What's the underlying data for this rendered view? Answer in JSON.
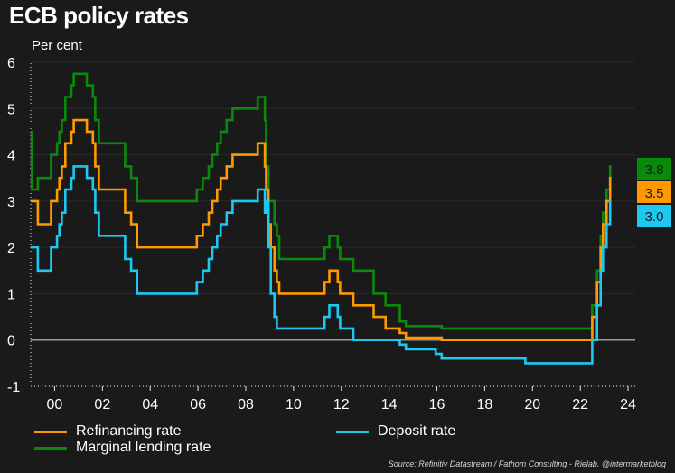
{
  "colors": {
    "background": "#1a1a1a",
    "refinancing": "#ff9900",
    "deposit": "#1ec8f0",
    "marginal": "#0a8a0a",
    "zero_line": "#9a9a9a",
    "grid": "#2b2b2b"
  },
  "source": "Source: Refinitiv Datastream / Fathom Consulting - Rielab. @intermarketblog",
  "chart_data": {
    "type": "line",
    "step": true,
    "title": "ECB policy rates",
    "subtitle": "Per cent",
    "xlabel": "",
    "ylabel": "",
    "xlim": [
      1999.0,
      2024.3
    ],
    "ylim": [
      -1,
      6
    ],
    "x_ticks": [
      2000,
      2002,
      2004,
      2006,
      2008,
      2010,
      2012,
      2014,
      2016,
      2018,
      2020,
      2022,
      2024
    ],
    "x_tick_labels": [
      "00",
      "02",
      "04",
      "06",
      "08",
      "10",
      "12",
      "14",
      "16",
      "18",
      "20",
      "22",
      "24"
    ],
    "y_ticks": [
      -1,
      0,
      1,
      2,
      3,
      4,
      5,
      6
    ],
    "y_tick_labels": [
      "-1",
      "0",
      "1",
      "2",
      "3",
      "4",
      "5",
      "6"
    ],
    "grid": true,
    "legend_position": "bottom",
    "series": [
      {
        "name": "Refinancing rate",
        "color": "#ff9900",
        "end_label": "3.5",
        "points": [
          [
            1999.0,
            3.0
          ],
          [
            1999.3,
            2.5
          ],
          [
            1999.85,
            3.0
          ],
          [
            2000.1,
            3.25
          ],
          [
            2000.2,
            3.5
          ],
          [
            2000.3,
            3.75
          ],
          [
            2000.45,
            4.25
          ],
          [
            2000.7,
            4.5
          ],
          [
            2000.8,
            4.75
          ],
          [
            2001.35,
            4.5
          ],
          [
            2001.6,
            4.25
          ],
          [
            2001.7,
            3.75
          ],
          [
            2001.85,
            3.25
          ],
          [
            2002.95,
            2.75
          ],
          [
            2003.2,
            2.5
          ],
          [
            2003.45,
            2.0
          ],
          [
            2005.95,
            2.25
          ],
          [
            2006.2,
            2.5
          ],
          [
            2006.45,
            2.75
          ],
          [
            2006.6,
            3.0
          ],
          [
            2006.8,
            3.25
          ],
          [
            2006.95,
            3.5
          ],
          [
            2007.2,
            3.75
          ],
          [
            2007.45,
            4.0
          ],
          [
            2008.5,
            4.25
          ],
          [
            2008.8,
            3.75
          ],
          [
            2008.85,
            3.25
          ],
          [
            2008.95,
            2.5
          ],
          [
            2009.05,
            2.0
          ],
          [
            2009.2,
            1.5
          ],
          [
            2009.3,
            1.25
          ],
          [
            2009.4,
            1.0
          ],
          [
            2011.3,
            1.25
          ],
          [
            2011.5,
            1.5
          ],
          [
            2011.85,
            1.25
          ],
          [
            2011.95,
            1.0
          ],
          [
            2012.5,
            0.75
          ],
          [
            2013.35,
            0.5
          ],
          [
            2013.85,
            0.25
          ],
          [
            2014.45,
            0.15
          ],
          [
            2014.7,
            0.05
          ],
          [
            2016.2,
            0.0
          ],
          [
            2022.5,
            0.5
          ],
          [
            2022.7,
            1.25
          ],
          [
            2022.85,
            2.0
          ],
          [
            2022.95,
            2.5
          ],
          [
            2023.1,
            3.0
          ],
          [
            2023.25,
            3.5
          ],
          [
            2023.3,
            3.5
          ]
        ]
      },
      {
        "name": "Deposit rate",
        "color": "#1ec8f0",
        "end_label": "3.0",
        "points": [
          [
            1999.0,
            2.0
          ],
          [
            1999.3,
            1.5
          ],
          [
            1999.85,
            2.0
          ],
          [
            2000.1,
            2.25
          ],
          [
            2000.2,
            2.5
          ],
          [
            2000.3,
            2.75
          ],
          [
            2000.45,
            3.25
          ],
          [
            2000.7,
            3.5
          ],
          [
            2000.8,
            3.75
          ],
          [
            2001.35,
            3.5
          ],
          [
            2001.6,
            3.25
          ],
          [
            2001.7,
            2.75
          ],
          [
            2001.85,
            2.25
          ],
          [
            2002.95,
            1.75
          ],
          [
            2003.2,
            1.5
          ],
          [
            2003.45,
            1.0
          ],
          [
            2005.95,
            1.25
          ],
          [
            2006.2,
            1.5
          ],
          [
            2006.45,
            1.75
          ],
          [
            2006.6,
            2.0
          ],
          [
            2006.8,
            2.25
          ],
          [
            2006.95,
            2.5
          ],
          [
            2007.2,
            2.75
          ],
          [
            2007.45,
            3.0
          ],
          [
            2008.5,
            3.25
          ],
          [
            2008.8,
            2.75
          ],
          [
            2008.85,
            3.0
          ],
          [
            2008.95,
            2.0
          ],
          [
            2009.05,
            1.0
          ],
          [
            2009.2,
            0.5
          ],
          [
            2009.3,
            0.25
          ],
          [
            2011.3,
            0.5
          ],
          [
            2011.5,
            0.75
          ],
          [
            2011.85,
            0.5
          ],
          [
            2011.95,
            0.25
          ],
          [
            2012.5,
            0.0
          ],
          [
            2014.45,
            -0.1
          ],
          [
            2014.7,
            -0.2
          ],
          [
            2015.95,
            -0.3
          ],
          [
            2016.2,
            -0.4
          ],
          [
            2019.7,
            -0.5
          ],
          [
            2022.5,
            0.0
          ],
          [
            2022.7,
            0.75
          ],
          [
            2022.85,
            1.5
          ],
          [
            2022.95,
            2.0
          ],
          [
            2023.1,
            2.5
          ],
          [
            2023.25,
            3.0
          ],
          [
            2023.3,
            3.0
          ]
        ]
      },
      {
        "name": "Marginal lending rate",
        "color": "#0a8a0a",
        "end_label": "3.8",
        "points": [
          [
            1999.0,
            4.5
          ],
          [
            1999.05,
            3.25
          ],
          [
            1999.3,
            3.5
          ],
          [
            1999.85,
            4.0
          ],
          [
            2000.1,
            4.25
          ],
          [
            2000.2,
            4.5
          ],
          [
            2000.3,
            4.75
          ],
          [
            2000.45,
            5.25
          ],
          [
            2000.7,
            5.5
          ],
          [
            2000.8,
            5.75
          ],
          [
            2001.35,
            5.5
          ],
          [
            2001.6,
            5.25
          ],
          [
            2001.7,
            4.75
          ],
          [
            2001.85,
            4.25
          ],
          [
            2002.95,
            3.75
          ],
          [
            2003.2,
            3.5
          ],
          [
            2003.45,
            3.0
          ],
          [
            2005.95,
            3.25
          ],
          [
            2006.2,
            3.5
          ],
          [
            2006.45,
            3.75
          ],
          [
            2006.6,
            4.0
          ],
          [
            2006.8,
            4.25
          ],
          [
            2006.95,
            4.5
          ],
          [
            2007.2,
            4.75
          ],
          [
            2007.45,
            5.0
          ],
          [
            2008.5,
            5.25
          ],
          [
            2008.8,
            4.75
          ],
          [
            2008.85,
            3.75
          ],
          [
            2008.95,
            3.0
          ],
          [
            2009.05,
            3.0
          ],
          [
            2009.2,
            2.5
          ],
          [
            2009.3,
            2.25
          ],
          [
            2009.4,
            1.75
          ],
          [
            2011.3,
            2.0
          ],
          [
            2011.5,
            2.25
          ],
          [
            2011.85,
            2.0
          ],
          [
            2011.95,
            1.75
          ],
          [
            2012.5,
            1.5
          ],
          [
            2013.35,
            1.0
          ],
          [
            2013.85,
            0.75
          ],
          [
            2014.45,
            0.4
          ],
          [
            2014.7,
            0.3
          ],
          [
            2016.2,
            0.25
          ],
          [
            2022.5,
            0.75
          ],
          [
            2022.7,
            1.5
          ],
          [
            2022.85,
            2.25
          ],
          [
            2022.95,
            2.75
          ],
          [
            2023.1,
            3.25
          ],
          [
            2023.25,
            3.75
          ],
          [
            2023.3,
            3.75
          ]
        ]
      }
    ]
  }
}
